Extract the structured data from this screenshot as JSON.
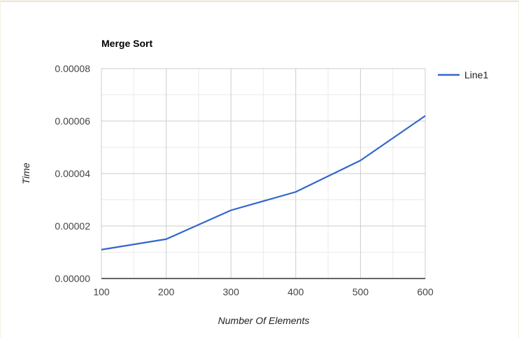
{
  "chart_data": {
    "type": "line",
    "title": "Merge Sort",
    "xlabel": "Number Of Elements",
    "ylabel": "Time",
    "x": [
      100,
      200,
      300,
      400,
      500,
      600
    ],
    "series": [
      {
        "name": "Line1",
        "values": [
          1.1e-05,
          1.5e-05,
          2.6e-05,
          3.3e-05,
          4.5e-05,
          6.2e-05
        ],
        "color": "#3366cc"
      }
    ],
    "xlim": [
      100,
      600
    ],
    "ylim": [
      0,
      8e-05
    ],
    "x_ticks": [
      "100",
      "200",
      "300",
      "400",
      "500",
      "600"
    ],
    "y_ticks": [
      "0.00000",
      "0.00002",
      "0.00004",
      "0.00006",
      "0.00008"
    ],
    "grid": true,
    "legend": "right"
  }
}
